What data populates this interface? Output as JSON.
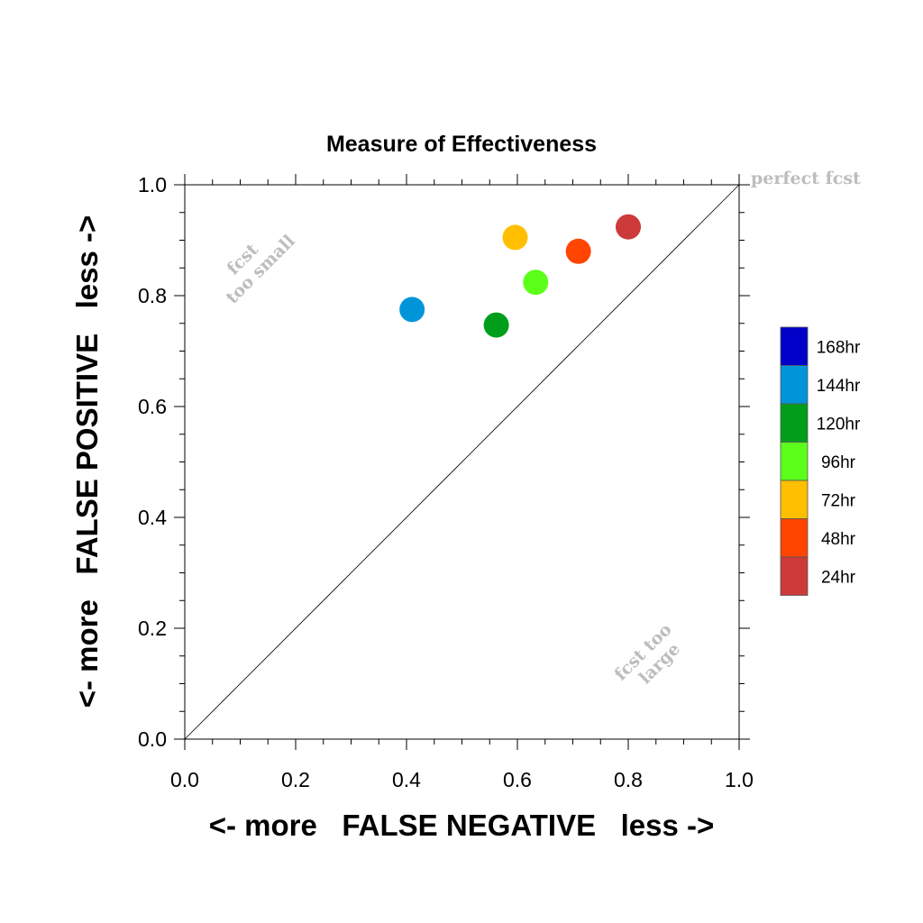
{
  "chart_data": {
    "type": "scatter",
    "title": "Measure of Effectiveness",
    "xlabel": "<- more   FALSE NEGATIVE   less ->",
    "ylabel": "<- more   FALSE POSITIVE   less ->",
    "xlim": [
      0.0,
      1.0
    ],
    "ylim": [
      0.0,
      1.0
    ],
    "x_ticks": [
      "0.0",
      "0.2",
      "0.4",
      "0.6",
      "0.8",
      "1.0"
    ],
    "y_ticks": [
      "0.0",
      "0.2",
      "0.4",
      "0.6",
      "0.8",
      "1.0"
    ],
    "grid": false,
    "diagonal_line": true,
    "annotations": {
      "perfect": "perfect fcst",
      "too_small_1": "fcst",
      "too_small_2": "too small",
      "too_large_1": "fcst too",
      "too_large_2": "large"
    },
    "legend_position": "right",
    "series": [
      {
        "name": "168hr",
        "color": "#0000c8",
        "points": []
      },
      {
        "name": "144hr",
        "color": "#0095d9",
        "points": [
          {
            "x": 0.41,
            "y": 0.775
          }
        ]
      },
      {
        "name": "120hr",
        "color": "#009e1a",
        "points": [
          {
            "x": 0.562,
            "y": 0.747
          }
        ]
      },
      {
        "name": "96hr",
        "color": "#5cff1a",
        "points": [
          {
            "x": 0.633,
            "y": 0.824
          }
        ]
      },
      {
        "name": "72hr",
        "color": "#ffbf00",
        "points": [
          {
            "x": 0.596,
            "y": 0.905
          }
        ]
      },
      {
        "name": "48hr",
        "color": "#ff4500",
        "points": [
          {
            "x": 0.71,
            "y": 0.88
          }
        ]
      },
      {
        "name": "24hr",
        "color": "#cc3a3a",
        "points": [
          {
            "x": 0.8,
            "y": 0.924
          }
        ]
      }
    ]
  }
}
